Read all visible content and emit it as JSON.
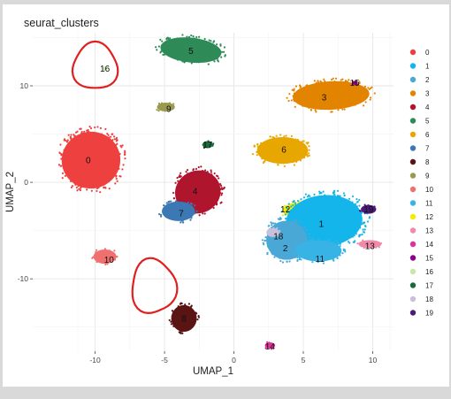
{
  "chart_data": {
    "type": "scatter",
    "title": "seurat_clusters",
    "xlabel": "UMAP_1",
    "ylabel": "UMAP_2",
    "xlim": [
      -14.5,
      11.5
    ],
    "ylim": [
      -17.5,
      15.5
    ],
    "xticks": [
      -10,
      -5,
      0,
      5,
      10
    ],
    "xtick_labels": [
      "-10",
      "-5",
      "0",
      "5",
      "10"
    ],
    "yticks": [
      -10,
      0,
      10
    ],
    "ytick_labels": [
      "-10",
      "0",
      "10"
    ],
    "grid": true,
    "legend_position": "right",
    "legend": [
      {
        "label": "0",
        "color": "#ef4040"
      },
      {
        "label": "1",
        "color": "#13b5ea"
      },
      {
        "label": "2",
        "color": "#4aa8d6"
      },
      {
        "label": "3",
        "color": "#e38400"
      },
      {
        "label": "4",
        "color": "#b0152e"
      },
      {
        "label": "5",
        "color": "#2e8b57"
      },
      {
        "label": "6",
        "color": "#e8a600"
      },
      {
        "label": "7",
        "color": "#3c78b4"
      },
      {
        "label": "8",
        "color": "#5a1414"
      },
      {
        "label": "9",
        "color": "#9a9a4e"
      },
      {
        "label": "10",
        "color": "#f07070"
      },
      {
        "label": "11",
        "color": "#37b3e6"
      },
      {
        "label": "12",
        "color": "#f5ec00"
      },
      {
        "label": "13",
        "color": "#f18aa8"
      },
      {
        "label": "14",
        "color": "#e0309a"
      },
      {
        "label": "15",
        "color": "#8a008a"
      },
      {
        "label": "16",
        "color": "#c8e8a8"
      },
      {
        "label": "17",
        "color": "#1a6a3a"
      },
      {
        "label": "18",
        "color": "#c8c0dc"
      },
      {
        "label": "19",
        "color": "#4b1a7a"
      }
    ],
    "clusters": [
      {
        "id": "0",
        "x": -10.3,
        "y": 2.3,
        "rx": 2.3,
        "ry": 3.2,
        "rot": -10,
        "label_x": -10.5,
        "label_y": 2.3
      },
      {
        "id": "3",
        "x": 7.0,
        "y": 9.0,
        "rx": 3.0,
        "ry": 1.6,
        "rot": -3,
        "label_x": 6.5,
        "label_y": 8.8
      },
      {
        "id": "5",
        "x": -3.1,
        "y": 13.7,
        "rx": 2.4,
        "ry": 1.4,
        "rot": 6,
        "label_x": -3.1,
        "label_y": 13.6
      },
      {
        "id": "6",
        "x": 3.5,
        "y": 3.3,
        "rx": 2.0,
        "ry": 1.5,
        "rot": 0,
        "label_x": 3.6,
        "label_y": 3.4
      },
      {
        "id": "4",
        "x": -2.6,
        "y": -1.0,
        "rx": 1.8,
        "ry": 2.4,
        "rot": -20,
        "label_x": -2.8,
        "label_y": -0.9
      },
      {
        "id": "7",
        "x": -4.0,
        "y": -3.0,
        "rx": 1.3,
        "ry": 1.1,
        "rot": 0,
        "label_x": -3.8,
        "label_y": -3.2
      },
      {
        "id": "9",
        "x": -4.9,
        "y": 7.8,
        "rx": 0.7,
        "ry": 0.5,
        "rot": 0,
        "label_x": -4.7,
        "label_y": 7.6
      },
      {
        "id": "17",
        "x": -1.9,
        "y": 3.9,
        "rx": 0.4,
        "ry": 0.4,
        "rot": 0,
        "label_x": -1.9,
        "label_y": 3.9
      },
      {
        "id": "12",
        "x": 4.8,
        "y": -2.9,
        "rx": 1.4,
        "ry": 0.9,
        "rot": 0,
        "label_x": 3.7,
        "label_y": -2.8
      },
      {
        "id": "1",
        "x": 6.5,
        "y": -4.0,
        "rx": 3.0,
        "ry": 2.9,
        "rot": -5,
        "label_x": 6.3,
        "label_y": -4.3
      },
      {
        "id": "2",
        "x": 3.8,
        "y": -6.0,
        "rx": 1.6,
        "ry": 2.2,
        "rot": 0,
        "label_x": 3.7,
        "label_y": -6.8
      },
      {
        "id": "11",
        "x": 6.1,
        "y": -7.1,
        "rx": 1.8,
        "ry": 1.2,
        "rot": 0,
        "label_x": 6.2,
        "label_y": -7.9
      },
      {
        "id": "18",
        "x": 2.8,
        "y": -5.2,
        "rx": 0.5,
        "ry": 0.5,
        "rot": 0,
        "label_x": 3.2,
        "label_y": -5.6
      },
      {
        "id": "13",
        "x": 9.8,
        "y": -6.4,
        "rx": 0.9,
        "ry": 0.45,
        "rot": 0,
        "label_x": 9.8,
        "label_y": -6.6
      },
      {
        "id": "19",
        "x": 9.7,
        "y": -2.8,
        "rx": 0.6,
        "ry": 0.5,
        "rot": 0,
        "label_x": 9.7,
        "label_y": -2.8
      },
      {
        "id": "15",
        "x": 8.7,
        "y": 10.3,
        "rx": 0.2,
        "ry": 0.2,
        "rot": 0,
        "label_x": 8.7,
        "label_y": 10.3
      },
      {
        "id": "10",
        "x": -9.3,
        "y": -7.7,
        "rx": 0.9,
        "ry": 0.8,
        "rot": 0,
        "label_x": -9.0,
        "label_y": -8.0
      },
      {
        "id": "8",
        "x": -3.6,
        "y": -14.1,
        "rx": 1.0,
        "ry": 1.5,
        "rot": 0,
        "label_x": -3.6,
        "label_y": -14.1
      },
      {
        "id": "14",
        "x": 2.6,
        "y": -16.9,
        "rx": 0.4,
        "ry": 0.35,
        "rot": 0,
        "label_x": 2.6,
        "label_y": -17.0
      },
      {
        "id": "16",
        "x": -9.3,
        "y": 11.8,
        "rx": 0.15,
        "ry": 0.15,
        "rot": 0,
        "label_x": -9.3,
        "label_y": 11.8
      }
    ],
    "annotations": [
      {
        "type": "hand-drawn-circle",
        "color": "#e02020",
        "x": -10.0,
        "y": 12.0,
        "rx": 1.6,
        "ry": 2.4
      },
      {
        "type": "hand-drawn-circle",
        "color": "#e02020",
        "x": -5.8,
        "y": -10.8,
        "rx": 1.6,
        "ry": 2.8
      }
    ]
  }
}
